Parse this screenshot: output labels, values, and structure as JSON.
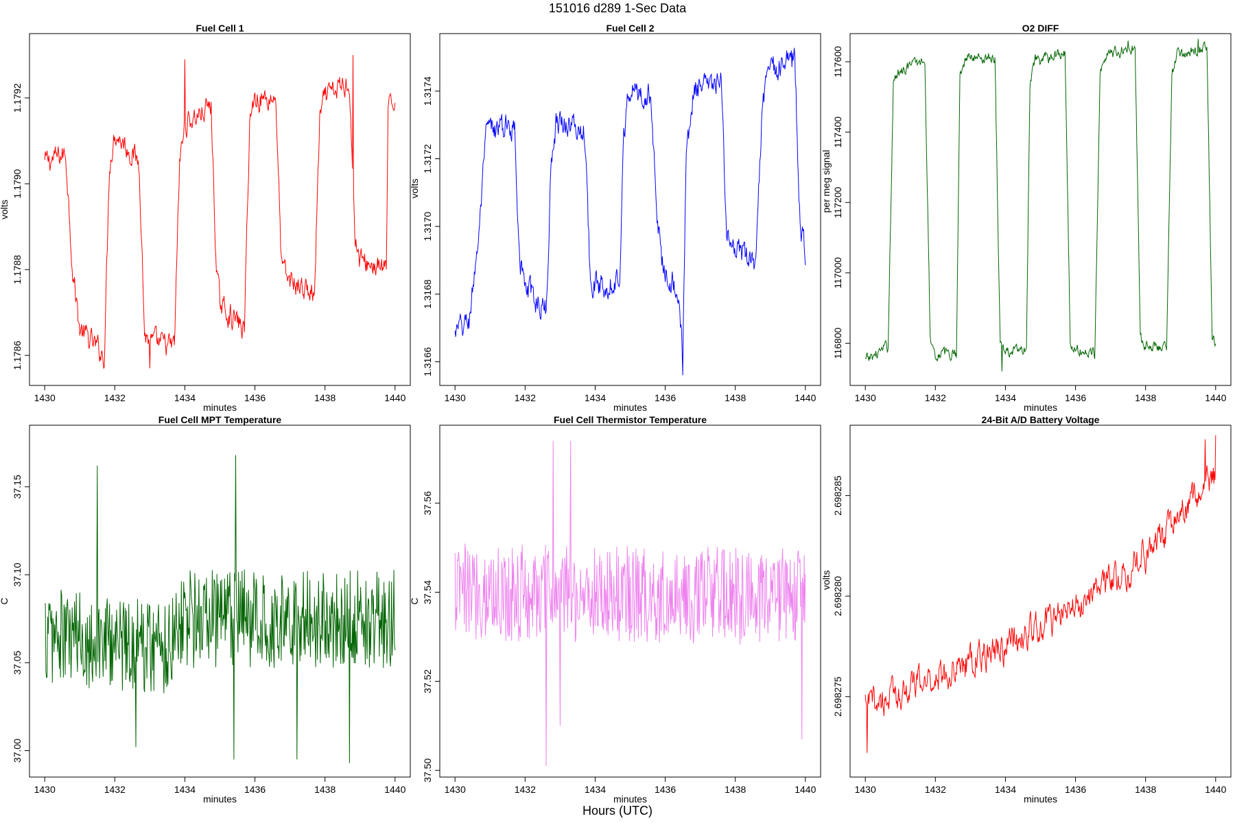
{
  "header": {
    "title": "151016   d289   1-Sec Data"
  },
  "footer": {
    "xlabel": "Hours (UTC)"
  },
  "chart_data": [
    {
      "id": "fc1",
      "type": "line",
      "title": "Fuel Cell 1",
      "xlabel": "minutes",
      "ylabel": "volts",
      "color": "#ff0000",
      "xlim": [
        1430,
        1440
      ],
      "ylim": [
        1.17853,
        1.17935
      ],
      "xticks": [
        1430,
        1432,
        1434,
        1436,
        1438,
        1440
      ],
      "yticks": [
        1.1786,
        1.1788,
        1.179,
        1.1792
      ],
      "ytick_labels": [
        "1.1786",
        "1.1788",
        "1.1790",
        "1.1792"
      ],
      "segments": [
        [
          1430.0,
          1.17905
        ],
        [
          1430.6,
          1.17907
        ],
        [
          1430.8,
          1.1788
        ],
        [
          1431.0,
          1.17866
        ],
        [
          1431.7,
          1.1786
        ],
        [
          1431.85,
          1.17905
        ],
        [
          1432.0,
          1.17912
        ],
        [
          1432.7,
          1.17905
        ],
        [
          1432.85,
          1.17865
        ],
        [
          1433.0,
          1.17863
        ],
        [
          1433.7,
          1.17862
        ],
        [
          1433.85,
          1.17905
        ],
        [
          1434.0,
          1.17914
        ],
        [
          1434.75,
          1.17918
        ],
        [
          1434.9,
          1.1788
        ],
        [
          1435.0,
          1.17872
        ],
        [
          1435.7,
          1.17866
        ],
        [
          1435.85,
          1.17915
        ],
        [
          1436.0,
          1.1792
        ],
        [
          1436.6,
          1.1792
        ],
        [
          1436.75,
          1.17882
        ],
        [
          1436.9,
          1.17878
        ],
        [
          1437.7,
          1.17874
        ],
        [
          1437.85,
          1.17915
        ],
        [
          1438.0,
          1.1792
        ],
        [
          1438.7,
          1.17924
        ],
        [
          1438.85,
          1.17888
        ],
        [
          1439.0,
          1.17882
        ],
        [
          1439.75,
          1.1788
        ],
        [
          1439.8,
          1.17916
        ],
        [
          1440.0,
          1.1792
        ]
      ],
      "noise": 2.5e-05,
      "spikes": [
        [
          1433.0,
          1.17857
        ],
        [
          1434.0,
          1.17929
        ],
        [
          1438.8,
          1.1793
        ]
      ]
    },
    {
      "id": "fc2",
      "type": "line",
      "title": "Fuel Cell 2",
      "xlabel": "minutes",
      "ylabel": "volts",
      "color": "#0000ff",
      "xlim": [
        1430,
        1440
      ],
      "ylim": [
        1.31653,
        1.31757
      ],
      "xticks": [
        1430,
        1432,
        1434,
        1436,
        1438,
        1440
      ],
      "yticks": [
        1.3166,
        1.3168,
        1.317,
        1.3172,
        1.3174
      ],
      "ytick_labels": [
        "1.3166",
        "1.3168",
        "1.3170",
        "1.3172",
        "1.3174"
      ],
      "segments": [
        [
          1430.0,
          1.31668
        ],
        [
          1430.4,
          1.31672
        ],
        [
          1430.7,
          1.317
        ],
        [
          1430.9,
          1.31728
        ],
        [
          1431.7,
          1.3173
        ],
        [
          1431.85,
          1.3169
        ],
        [
          1432.0,
          1.31682
        ],
        [
          1432.6,
          1.31675
        ],
        [
          1432.75,
          1.3172
        ],
        [
          1432.9,
          1.31732
        ],
        [
          1433.7,
          1.31728
        ],
        [
          1433.85,
          1.31688
        ],
        [
          1434.0,
          1.31682
        ],
        [
          1434.7,
          1.31685
        ],
        [
          1434.8,
          1.31725
        ],
        [
          1434.95,
          1.3174
        ],
        [
          1435.6,
          1.31738
        ],
        [
          1435.75,
          1.31705
        ],
        [
          1435.9,
          1.3169
        ],
        [
          1436.4,
          1.3168
        ],
        [
          1436.5,
          1.3166
        ],
        [
          1436.6,
          1.3172
        ],
        [
          1436.8,
          1.3174
        ],
        [
          1437.6,
          1.31742
        ],
        [
          1437.75,
          1.317
        ],
        [
          1437.9,
          1.31692
        ],
        [
          1438.6,
          1.3169
        ],
        [
          1438.75,
          1.3173
        ],
        [
          1438.9,
          1.31745
        ],
        [
          1439.7,
          1.3175
        ],
        [
          1439.85,
          1.317
        ],
        [
          1440.0,
          1.31692
        ]
      ],
      "noise": 3.5e-05,
      "spikes": [
        [
          1436.5,
          1.31656
        ],
        [
          1439.6,
          1.31752
        ]
      ]
    },
    {
      "id": "o2",
      "type": "line",
      "title": "O2 DIFF",
      "xlabel": "minutes",
      "ylabel": "per meg signal",
      "color": "#006400",
      "xlim": [
        1430,
        1440
      ],
      "ylim": [
        116680,
        117680
      ],
      "xticks": [
        1430,
        1432,
        1434,
        1436,
        1438,
        1440
      ],
      "yticks": [
        116800,
        117000,
        117200,
        117400,
        117600
      ],
      "ytick_labels": [
        "116800",
        "117000",
        "117200",
        "117400",
        "117600"
      ],
      "segments": [
        [
          1430.0,
          116750
        ],
        [
          1430.65,
          116790
        ],
        [
          1430.8,
          117540
        ],
        [
          1431.0,
          117580
        ],
        [
          1431.7,
          117605
        ],
        [
          1431.85,
          116820
        ],
        [
          1432.0,
          116770
        ],
        [
          1432.6,
          116770
        ],
        [
          1432.7,
          117560
        ],
        [
          1432.85,
          117610
        ],
        [
          1433.7,
          117615
        ],
        [
          1433.85,
          116800
        ],
        [
          1434.0,
          116775
        ],
        [
          1434.6,
          116780
        ],
        [
          1434.7,
          117540
        ],
        [
          1434.85,
          117600
        ],
        [
          1435.7,
          117630
        ],
        [
          1435.85,
          116800
        ],
        [
          1436.0,
          116780
        ],
        [
          1436.55,
          116770
        ],
        [
          1436.7,
          117570
        ],
        [
          1436.85,
          117620
        ],
        [
          1437.7,
          117640
        ],
        [
          1437.85,
          116810
        ],
        [
          1438.0,
          116795
        ],
        [
          1438.6,
          116790
        ],
        [
          1438.75,
          117560
        ],
        [
          1438.9,
          117620
        ],
        [
          1439.75,
          117640
        ],
        [
          1439.9,
          116810
        ],
        [
          1440.0,
          116800
        ]
      ],
      "noise": 15,
      "spikes": [
        [
          1433.9,
          116720
        ],
        [
          1437.5,
          117660
        ],
        [
          1439.5,
          117665
        ]
      ]
    },
    {
      "id": "mpt",
      "type": "line",
      "title": "Fuel Cell MPT Temperature",
      "xlabel": "minutes",
      "ylabel": "C",
      "color": "#006400",
      "xlim": [
        1430,
        1440
      ],
      "ylim": [
        36.985,
        37.185
      ],
      "xticks": [
        1430,
        1432,
        1434,
        1436,
        1438,
        1440
      ],
      "yticks": [
        37.0,
        37.05,
        37.1,
        37.15
      ],
      "ytick_labels": [
        "37.00",
        "37.05",
        "37.10",
        "37.15"
      ],
      "segments": [
        [
          1430.0,
          37.065
        ],
        [
          1433.6,
          37.06
        ],
        [
          1433.7,
          37.075
        ],
        [
          1440.0,
          37.075
        ]
      ],
      "noise": 0.028,
      "spikes": [
        [
          1431.5,
          37.162
        ],
        [
          1432.6,
          37.002
        ],
        [
          1435.45,
          37.168
        ],
        [
          1435.4,
          36.995
        ],
        [
          1438.7,
          36.993
        ],
        [
          1437.2,
          36.995
        ]
      ]
    },
    {
      "id": "thermistor",
      "type": "line",
      "title": "Fuel Cell Thermistor Temperature",
      "xlabel": "minutes",
      "ylabel": "C",
      "color": "#ee82ee",
      "xlim": [
        1430,
        1440
      ],
      "ylim": [
        37.4985,
        37.5775
      ],
      "xticks": [
        1430,
        1432,
        1434,
        1436,
        1438,
        1440
      ],
      "yticks": [
        37.5,
        37.52,
        37.54,
        37.56
      ],
      "ytick_labels": [
        "37.50",
        "37.52",
        "37.54",
        "37.56"
      ],
      "segments": [
        [
          1430.0,
          37.54
        ],
        [
          1440.0,
          37.539
        ]
      ],
      "noise": 0.011,
      "spikes": [
        [
          1432.8,
          37.574
        ],
        [
          1432.6,
          37.501
        ],
        [
          1433.3,
          37.574
        ],
        [
          1439.9,
          37.507
        ],
        [
          1433.0,
          37.51
        ]
      ]
    },
    {
      "id": "battery",
      "type": "line",
      "title": "24-Bit A/D Battery Voltage",
      "xlabel": "minutes",
      "ylabel": "volts",
      "color": "#ff0000",
      "xlim": [
        1430,
        1440
      ],
      "ylim": [
        2.698271,
        2.6982885
      ],
      "xticks": [
        1430,
        1432,
        1434,
        1436,
        1438,
        1440
      ],
      "yticks": [
        2.698275,
        2.69828,
        2.698285
      ],
      "ytick_labels": [
        "2.698275",
        "2.698280",
        "2.698285"
      ],
      "segments": [
        [
          1430.0,
          2.6982745
        ],
        [
          1432.0,
          2.698276
        ],
        [
          1434.0,
          2.6982775
        ],
        [
          1436.0,
          2.6982795
        ],
        [
          1438.0,
          2.698282
        ],
        [
          1440.0,
          2.698286
        ]
      ],
      "noise": 7e-07,
      "spikes": [
        [
          1430.05,
          2.6982722
        ],
        [
          1440.0,
          2.698288
        ],
        [
          1439.7,
          2.6982878
        ]
      ]
    }
  ]
}
